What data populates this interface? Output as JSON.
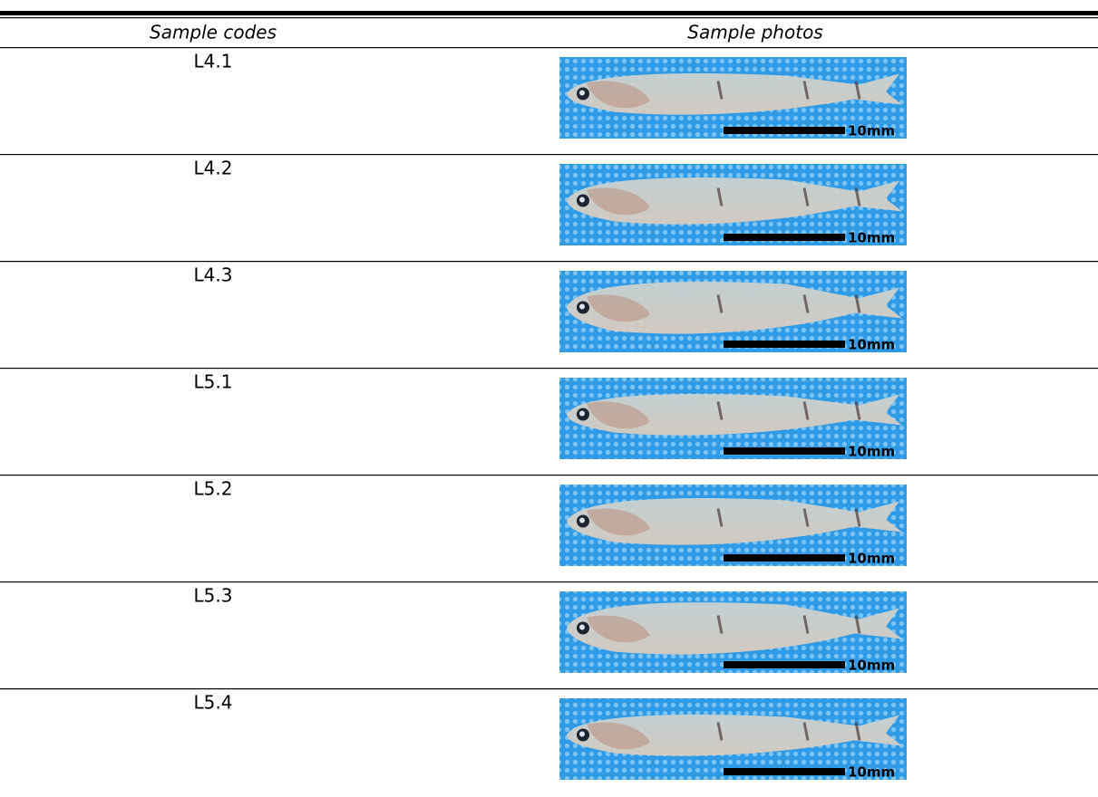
{
  "table": {
    "headers": [
      "Sample codes",
      "Sample photos"
    ],
    "rows": [
      {
        "code": "L4.1",
        "scale": "10mm"
      },
      {
        "code": "L4.2",
        "scale": "10mm"
      },
      {
        "code": "L4.3",
        "scale": "10mm"
      },
      {
        "code": "L5.1",
        "scale": "10mm"
      },
      {
        "code": "L5.2",
        "scale": "10mm"
      },
      {
        "code": "L5.3",
        "scale": "10mm"
      },
      {
        "code": "L5.4",
        "scale": "10mm"
      }
    ]
  }
}
